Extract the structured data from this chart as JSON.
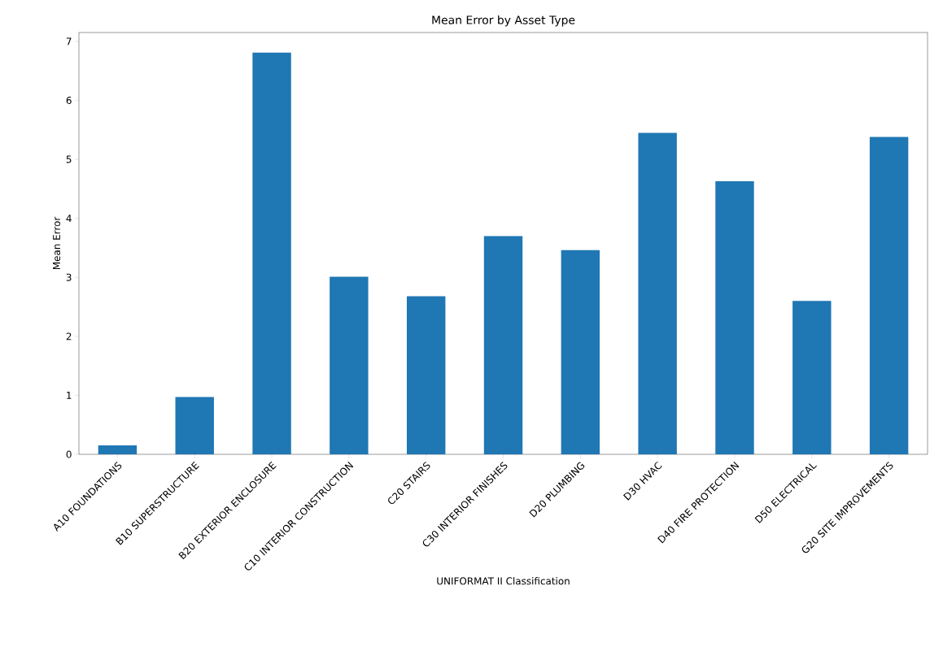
{
  "chart_data": {
    "type": "bar",
    "title": "Mean Error by Asset Type",
    "xlabel": "UNIFORMAT II Classification",
    "ylabel": "Mean Error",
    "categories": [
      "A10 FOUNDATIONS",
      "B10 SUPERSTRUCTURE",
      "B20 EXTERIOR ENCLOSURE",
      "C10 INTERIOR CONSTRUCTION",
      "C20 STAIRS",
      "C30 INTERIOR FINISHES",
      "D20 PLUMBING",
      "D30 HVAC",
      "D40 FIRE PROTECTION",
      "D50 ELECTRICAL",
      "G20 SITE IMPROVEMENTS"
    ],
    "values": [
      0.15,
      0.97,
      6.81,
      3.01,
      2.68,
      3.7,
      3.46,
      5.45,
      4.63,
      2.6,
      5.38
    ],
    "color": "#1f77b4",
    "ylim": [
      0,
      7.15
    ],
    "yticks": [
      0,
      1,
      2,
      3,
      4,
      5,
      6,
      7
    ],
    "grid": false
  }
}
